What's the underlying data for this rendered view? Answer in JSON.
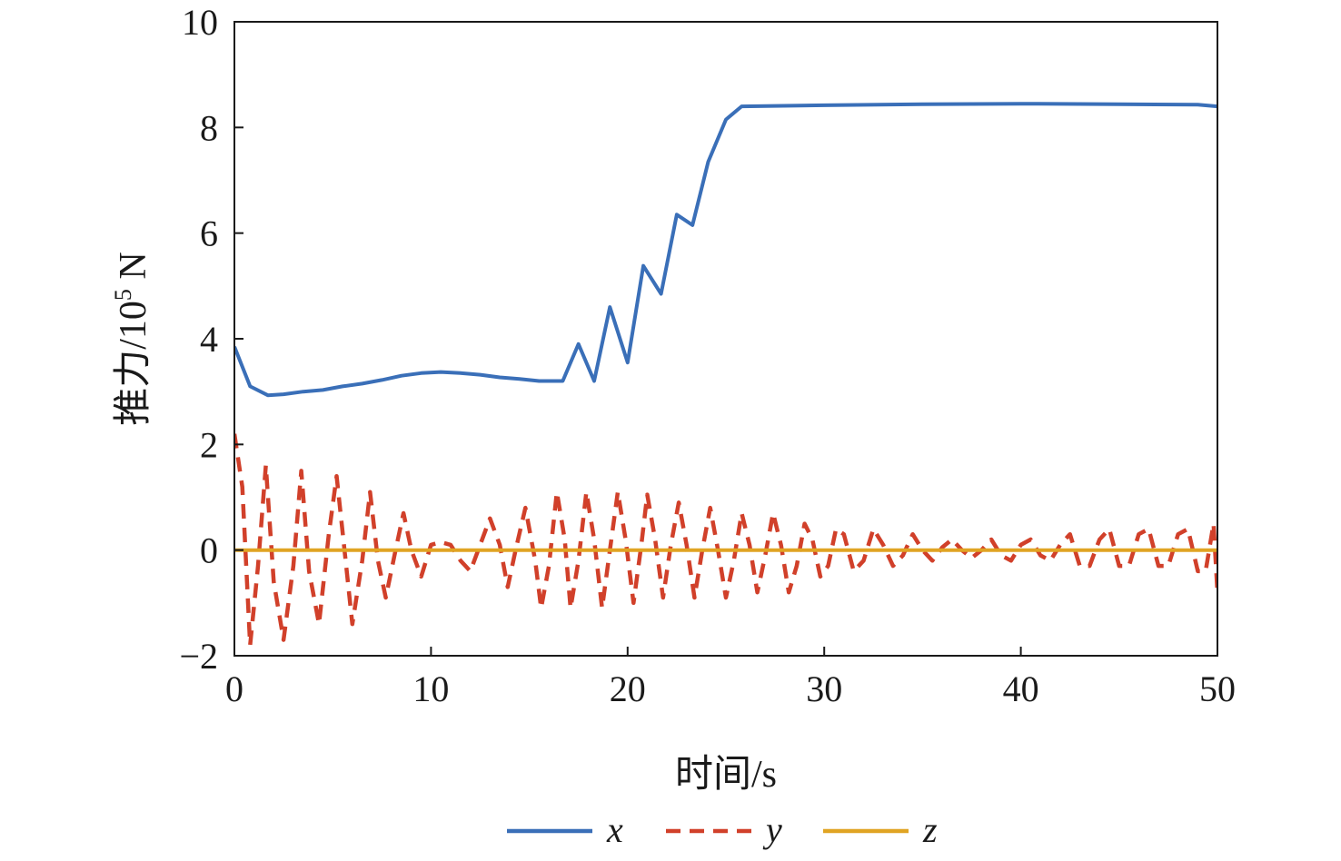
{
  "chart_data": {
    "type": "line",
    "title": "",
    "xlabel": "时间/s",
    "ylabel": "推力/10",
    "ylabel_sup": "5",
    "ylabel_unit": " N",
    "xlim": [
      0,
      50
    ],
    "ylim": [
      -2,
      10
    ],
    "xticks": [
      0,
      10,
      20,
      30,
      40,
      50
    ],
    "yticks": [
      -2,
      0,
      2,
      4,
      6,
      8,
      10
    ],
    "xtick_labels": [
      "0",
      "10",
      "20",
      "30",
      "40",
      "50"
    ],
    "ytick_labels": [
      "−2",
      "0",
      "2",
      "4",
      "6",
      "8",
      "10"
    ],
    "grid": false,
    "legend_position": "bottom",
    "series": [
      {
        "name": "x",
        "color": "#3a6fb8",
        "style": "solid",
        "points": [
          [
            0,
            3.85
          ],
          [
            0.8,
            3.1
          ],
          [
            1.7,
            2.93
          ],
          [
            2.5,
            2.95
          ],
          [
            3.5,
            3.0
          ],
          [
            4.5,
            3.03
          ],
          [
            5.5,
            3.1
          ],
          [
            6.5,
            3.15
          ],
          [
            7.5,
            3.22
          ],
          [
            8.5,
            3.3
          ],
          [
            9.5,
            3.35
          ],
          [
            10.5,
            3.37
          ],
          [
            11.5,
            3.35
          ],
          [
            12.5,
            3.32
          ],
          [
            13.5,
            3.27
          ],
          [
            14.5,
            3.24
          ],
          [
            15.5,
            3.2
          ],
          [
            16.7,
            3.2
          ],
          [
            17.5,
            3.9
          ],
          [
            18.3,
            3.2
          ],
          [
            19.1,
            4.6
          ],
          [
            20.0,
            3.55
          ],
          [
            20.8,
            5.38
          ],
          [
            21.7,
            4.85
          ],
          [
            22.5,
            6.35
          ],
          [
            23.3,
            6.15
          ],
          [
            24.1,
            7.35
          ],
          [
            25.0,
            8.15
          ],
          [
            25.8,
            8.4
          ],
          [
            30,
            8.42
          ],
          [
            35,
            8.44
          ],
          [
            40,
            8.45
          ],
          [
            45,
            8.44
          ],
          [
            49,
            8.43
          ],
          [
            50,
            8.4
          ]
        ]
      },
      {
        "name": "y",
        "color": "#d1402a",
        "style": "dashed",
        "points": [
          [
            0,
            2.2
          ],
          [
            0.4,
            1.2
          ],
          [
            0.8,
            -1.8
          ],
          [
            1.2,
            -0.3
          ],
          [
            1.6,
            1.6
          ],
          [
            2.0,
            -0.6
          ],
          [
            2.5,
            -1.7
          ],
          [
            3.0,
            -0.3
          ],
          [
            3.4,
            1.5
          ],
          [
            3.8,
            -0.4
          ],
          [
            4.3,
            -1.4
          ],
          [
            4.8,
            0.3
          ],
          [
            5.2,
            1.4
          ],
          [
            5.6,
            0
          ],
          [
            6.0,
            -1.4
          ],
          [
            6.5,
            -0.2
          ],
          [
            6.9,
            1.1
          ],
          [
            7.3,
            -0.2
          ],
          [
            7.7,
            -0.9
          ],
          [
            8.2,
            0
          ],
          [
            8.6,
            0.7
          ],
          [
            9.0,
            0
          ],
          [
            9.5,
            -0.5
          ],
          [
            10,
            0.1
          ],
          [
            10.5,
            0.15
          ],
          [
            11,
            0.1
          ],
          [
            11.5,
            -0.2
          ],
          [
            12,
            -0.4
          ],
          [
            12.5,
            0.1
          ],
          [
            13,
            0.6
          ],
          [
            13.5,
            0.1
          ],
          [
            13.9,
            -0.7
          ],
          [
            14.3,
            0
          ],
          [
            14.8,
            0.8
          ],
          [
            15.3,
            -0.2
          ],
          [
            15.6,
            -1.1
          ],
          [
            16.0,
            -0.3
          ],
          [
            16.4,
            1.1
          ],
          [
            16.8,
            0.2
          ],
          [
            17.1,
            -1.1
          ],
          [
            17.5,
            -0.2
          ],
          [
            17.9,
            1.1
          ],
          [
            18.3,
            0.2
          ],
          [
            18.7,
            -1.1
          ],
          [
            19.1,
            0
          ],
          [
            19.5,
            1.1
          ],
          [
            19.9,
            0.2
          ],
          [
            20.3,
            -1.0
          ],
          [
            20.7,
            0.1
          ],
          [
            21.0,
            1.05
          ],
          [
            21.4,
            0.2
          ],
          [
            21.8,
            -0.9
          ],
          [
            22.2,
            0.1
          ],
          [
            22.6,
            0.9
          ],
          [
            23.0,
            0.1
          ],
          [
            23.4,
            -0.9
          ],
          [
            23.8,
            0
          ],
          [
            24.2,
            0.8
          ],
          [
            24.6,
            0
          ],
          [
            25.0,
            -0.9
          ],
          [
            25.4,
            -0.2
          ],
          [
            25.8,
            0.7
          ],
          [
            26.2,
            0.1
          ],
          [
            26.6,
            -0.8
          ],
          [
            27.0,
            -0.1
          ],
          [
            27.4,
            0.7
          ],
          [
            27.8,
            0.1
          ],
          [
            28.2,
            -0.8
          ],
          [
            28.6,
            -0.3
          ],
          [
            29.0,
            0.5
          ],
          [
            29.4,
            0.2
          ],
          [
            29.8,
            -0.5
          ],
          [
            30.2,
            -0.3
          ],
          [
            30.6,
            0.4
          ],
          [
            31.0,
            0.3
          ],
          [
            31.5,
            -0.4
          ],
          [
            32.0,
            -0.2
          ],
          [
            32.5,
            0.4
          ],
          [
            33.0,
            0.1
          ],
          [
            33.5,
            -0.3
          ],
          [
            34.0,
            -0.1
          ],
          [
            34.5,
            0.3
          ],
          [
            35.0,
            0
          ],
          [
            35.5,
            -0.2
          ],
          [
            36.0,
            0.05
          ],
          [
            36.5,
            0.2
          ],
          [
            37.0,
            0
          ],
          [
            37.5,
            -0.15
          ],
          [
            38.0,
            0
          ],
          [
            38.5,
            0.2
          ],
          [
            39.0,
            -0.1
          ],
          [
            39.5,
            -0.2
          ],
          [
            40.0,
            0.1
          ],
          [
            40.5,
            0.2
          ],
          [
            41.0,
            -0.1
          ],
          [
            41.5,
            -0.2
          ],
          [
            42.0,
            0.1
          ],
          [
            42.5,
            0.3
          ],
          [
            43.0,
            -0.3
          ],
          [
            43.5,
            -0.3
          ],
          [
            44.0,
            0.2
          ],
          [
            44.5,
            0.4
          ],
          [
            45.0,
            -0.3
          ],
          [
            45.5,
            -0.3
          ],
          [
            46.0,
            0.3
          ],
          [
            46.5,
            0.4
          ],
          [
            47.0,
            -0.3
          ],
          [
            47.5,
            -0.3
          ],
          [
            48.0,
            0.3
          ],
          [
            48.5,
            0.4
          ],
          [
            49.0,
            -0.4
          ],
          [
            49.4,
            -0.4
          ],
          [
            49.8,
            0.5
          ],
          [
            50,
            -0.8
          ]
        ]
      },
      {
        "name": "z",
        "color": "#e0a423",
        "style": "solid",
        "points": [
          [
            0,
            0
          ],
          [
            50,
            0
          ]
        ]
      }
    ]
  }
}
